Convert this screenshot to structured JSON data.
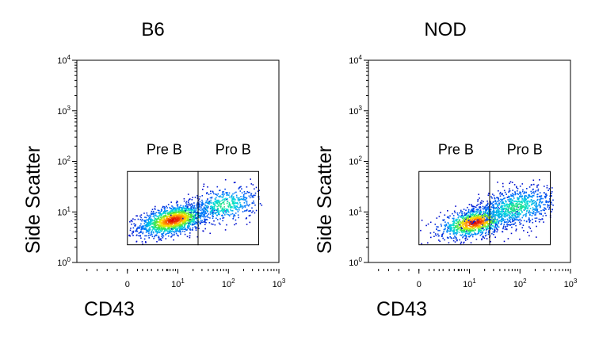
{
  "chart_data": [
    {
      "type": "scatter",
      "subtype": "flow-cytometry-density",
      "title": "B6",
      "xlabel": "CD43",
      "ylabel": "Side Scatter",
      "x_scale": "biexponential",
      "y_scale": "log",
      "xlim": [
        -1,
        3
      ],
      "ylim": [
        0,
        4
      ],
      "x_ticks": [
        {
          "value": 0,
          "base": "0",
          "exp": ""
        },
        {
          "value": 1,
          "base": "10",
          "exp": "1"
        },
        {
          "value": 2,
          "base": "10",
          "exp": "2"
        },
        {
          "value": 3,
          "base": "10",
          "exp": "3"
        }
      ],
      "y_ticks": [
        {
          "value": 0,
          "base": "10",
          "exp": "0"
        },
        {
          "value": 1,
          "base": "10",
          "exp": "1"
        },
        {
          "value": 2,
          "base": "10",
          "exp": "2"
        },
        {
          "value": 3,
          "base": "10",
          "exp": "3"
        },
        {
          "value": 4,
          "base": "10",
          "exp": "4"
        }
      ],
      "gates": [
        {
          "name": "Pre B",
          "x": [
            0,
            1.4
          ],
          "y": [
            0.35,
            1.8
          ]
        },
        {
          "name": "Pro B",
          "x": [
            1.4,
            2.6
          ],
          "y": [
            0.35,
            1.8
          ]
        }
      ],
      "clusters": [
        {
          "cx": 0.9,
          "cy": 0.85,
          "sx": 0.35,
          "sy": 0.16,
          "rho": 0.45,
          "n": 1500,
          "dense": true
        },
        {
          "cx": 1.9,
          "cy": 1.15,
          "sx": 0.35,
          "sy": 0.18,
          "rho": 0.3,
          "n": 500,
          "dense": false
        }
      ]
    },
    {
      "type": "scatter",
      "subtype": "flow-cytometry-density",
      "title": "NOD",
      "xlabel": "CD43",
      "ylabel": "Side Scatter",
      "x_scale": "biexponential",
      "y_scale": "log",
      "xlim": [
        -1,
        3
      ],
      "ylim": [
        0,
        4
      ],
      "x_ticks": [
        {
          "value": 0,
          "base": "0",
          "exp": ""
        },
        {
          "value": 1,
          "base": "10",
          "exp": "1"
        },
        {
          "value": 2,
          "base": "10",
          "exp": "2"
        },
        {
          "value": 3,
          "base": "10",
          "exp": "3"
        }
      ],
      "y_ticks": [
        {
          "value": 0,
          "base": "10",
          "exp": "0"
        },
        {
          "value": 1,
          "base": "10",
          "exp": "1"
        },
        {
          "value": 2,
          "base": "10",
          "exp": "2"
        },
        {
          "value": 3,
          "base": "10",
          "exp": "3"
        },
        {
          "value": 4,
          "base": "10",
          "exp": "4"
        }
      ],
      "gates": [
        {
          "name": "Pre B",
          "x": [
            0,
            1.4
          ],
          "y": [
            0.35,
            1.8
          ]
        },
        {
          "name": "Pro B",
          "x": [
            1.4,
            2.6
          ],
          "y": [
            0.35,
            1.8
          ]
        }
      ],
      "clusters": [
        {
          "cx": 1.1,
          "cy": 0.8,
          "sx": 0.35,
          "sy": 0.15,
          "rho": 0.4,
          "n": 1100,
          "dense": true
        },
        {
          "cx": 1.9,
          "cy": 1.1,
          "sx": 0.4,
          "sy": 0.2,
          "rho": 0.35,
          "n": 900,
          "dense": false
        }
      ]
    }
  ]
}
